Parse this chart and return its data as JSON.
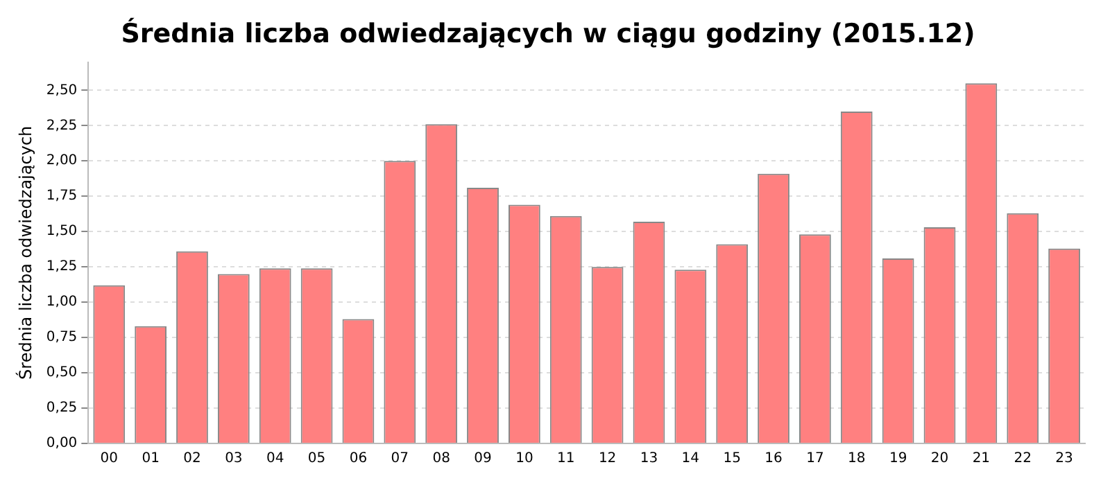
{
  "chart_data": {
    "type": "bar",
    "title": "Średnia liczba odwiedzających w ciągu godziny (2015.12)",
    "ylabel": "Średnia liczba odwiedzających",
    "categories": [
      "00",
      "01",
      "02",
      "03",
      "04",
      "05",
      "06",
      "07",
      "08",
      "09",
      "10",
      "11",
      "12",
      "13",
      "14",
      "15",
      "16",
      "17",
      "18",
      "19",
      "20",
      "21",
      "22",
      "23"
    ],
    "values": [
      1.12,
      0.83,
      1.36,
      1.2,
      1.24,
      1.24,
      0.88,
      2.0,
      2.26,
      1.81,
      1.69,
      1.61,
      1.25,
      1.57,
      1.23,
      1.41,
      1.91,
      1.48,
      2.35,
      1.31,
      1.53,
      2.55,
      1.63,
      1.38
    ],
    "color": "#ff8080",
    "ylim": [
      0,
      2.7
    ],
    "yticks": [
      {
        "value": 0,
        "label": "0,00"
      },
      {
        "value": 0.25,
        "label": "0,25"
      },
      {
        "value": 0.5,
        "label": "0,50"
      },
      {
        "value": 0.75,
        "label": "0,75"
      },
      {
        "value": 1,
        "label": "1,00"
      },
      {
        "value": 1.25,
        "label": "1,25"
      },
      {
        "value": 1.5,
        "label": "1,50"
      },
      {
        "value": 1.75,
        "label": "1,75"
      },
      {
        "value": 2,
        "label": "2,00"
      },
      {
        "value": 2.25,
        "label": "2,25"
      },
      {
        "value": 2.5,
        "label": "2,50"
      }
    ],
    "grid": "y"
  }
}
